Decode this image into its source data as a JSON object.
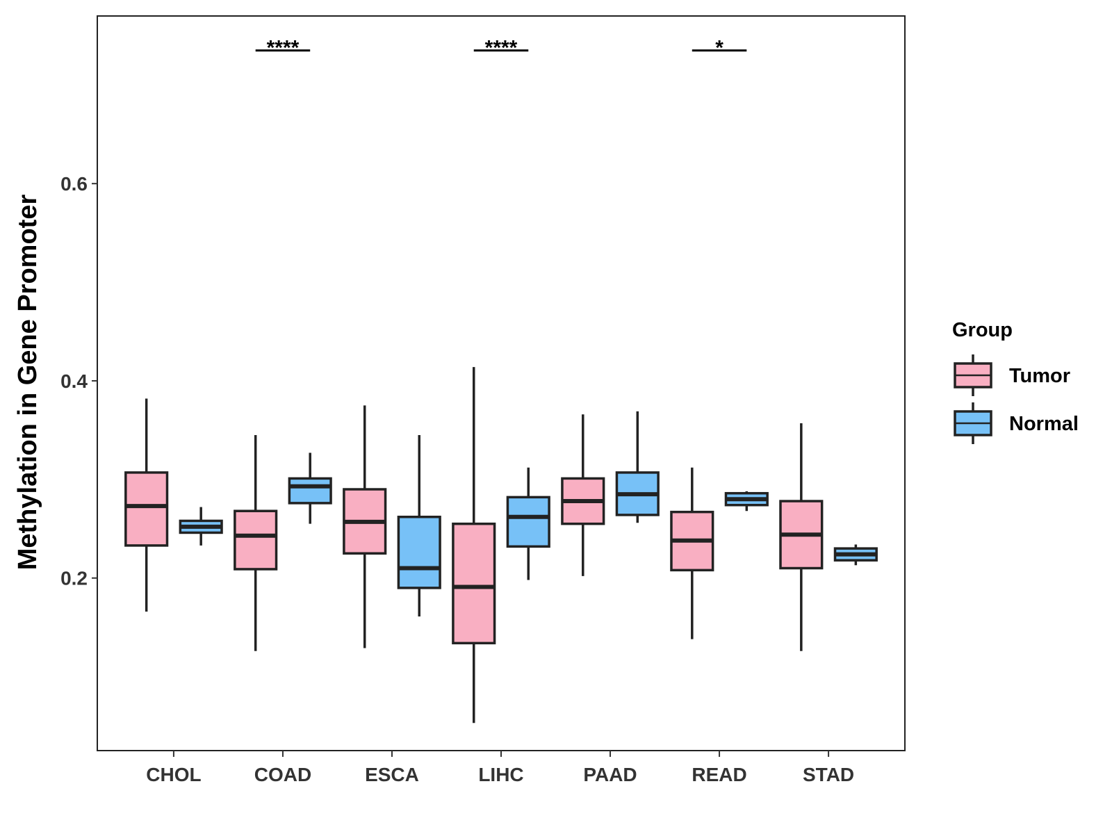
{
  "chart_data": {
    "type": "boxplot",
    "title": "",
    "xlabel": "",
    "ylabel": "Methylation in Gene Promoter",
    "ylim": [
      0.025,
      0.77
    ],
    "yticks": [
      0.2,
      0.4,
      0.6
    ],
    "ytick_labels": [
      "0.2",
      "0.4",
      "0.6"
    ],
    "categories": [
      "CHOL",
      "COAD",
      "ESCA",
      "LIHC",
      "PAAD",
      "READ",
      "STAD"
    ],
    "legend": {
      "title": "Group",
      "position": "right",
      "entries": [
        {
          "label": "Tumor",
          "color": "#F9AFC2"
        },
        {
          "label": "Normal",
          "color": "#77C1F7"
        }
      ]
    },
    "series": [
      {
        "name": "Tumor",
        "color": "#F9AFC2",
        "boxes": [
          {
            "min": 0.166,
            "q1": 0.233,
            "median": 0.273,
            "q3": 0.307,
            "max": 0.382
          },
          {
            "min": 0.126,
            "q1": 0.209,
            "median": 0.243,
            "q3": 0.268,
            "max": 0.345
          },
          {
            "min": 0.129,
            "q1": 0.225,
            "median": 0.257,
            "q3": 0.29,
            "max": 0.375
          },
          {
            "min": 0.053,
            "q1": 0.134,
            "median": 0.191,
            "q3": 0.255,
            "max": 0.414
          },
          {
            "min": 0.202,
            "q1": 0.255,
            "median": 0.278,
            "q3": 0.301,
            "max": 0.366
          },
          {
            "min": 0.138,
            "q1": 0.208,
            "median": 0.238,
            "q3": 0.267,
            "max": 0.312
          },
          {
            "min": 0.126,
            "q1": 0.21,
            "median": 0.244,
            "q3": 0.278,
            "max": 0.357
          }
        ]
      },
      {
        "name": "Normal",
        "color": "#77C1F7",
        "boxes": [
          {
            "min": 0.233,
            "q1": 0.246,
            "median": 0.252,
            "q3": 0.258,
            "max": 0.272
          },
          {
            "min": 0.255,
            "q1": 0.276,
            "median": 0.293,
            "q3": 0.301,
            "max": 0.327
          },
          {
            "min": 0.161,
            "q1": 0.19,
            "median": 0.21,
            "q3": 0.262,
            "max": 0.345
          },
          {
            "min": 0.198,
            "q1": 0.232,
            "median": 0.262,
            "q3": 0.282,
            "max": 0.312
          },
          {
            "min": 0.256,
            "q1": 0.264,
            "median": 0.285,
            "q3": 0.307,
            "max": 0.369
          },
          {
            "min": 0.268,
            "q1": 0.274,
            "median": 0.28,
            "q3": 0.286,
            "max": 0.288
          },
          {
            "min": 0.213,
            "q1": 0.218,
            "median": 0.224,
            "q3": 0.23,
            "max": 0.234
          }
        ]
      }
    ],
    "annotations": [
      {
        "category": "COAD",
        "label": "****",
        "y": 0.735
      },
      {
        "category": "LIHC",
        "label": "****",
        "y": 0.735
      },
      {
        "category": "READ",
        "label": "*",
        "y": 0.735
      }
    ]
  }
}
